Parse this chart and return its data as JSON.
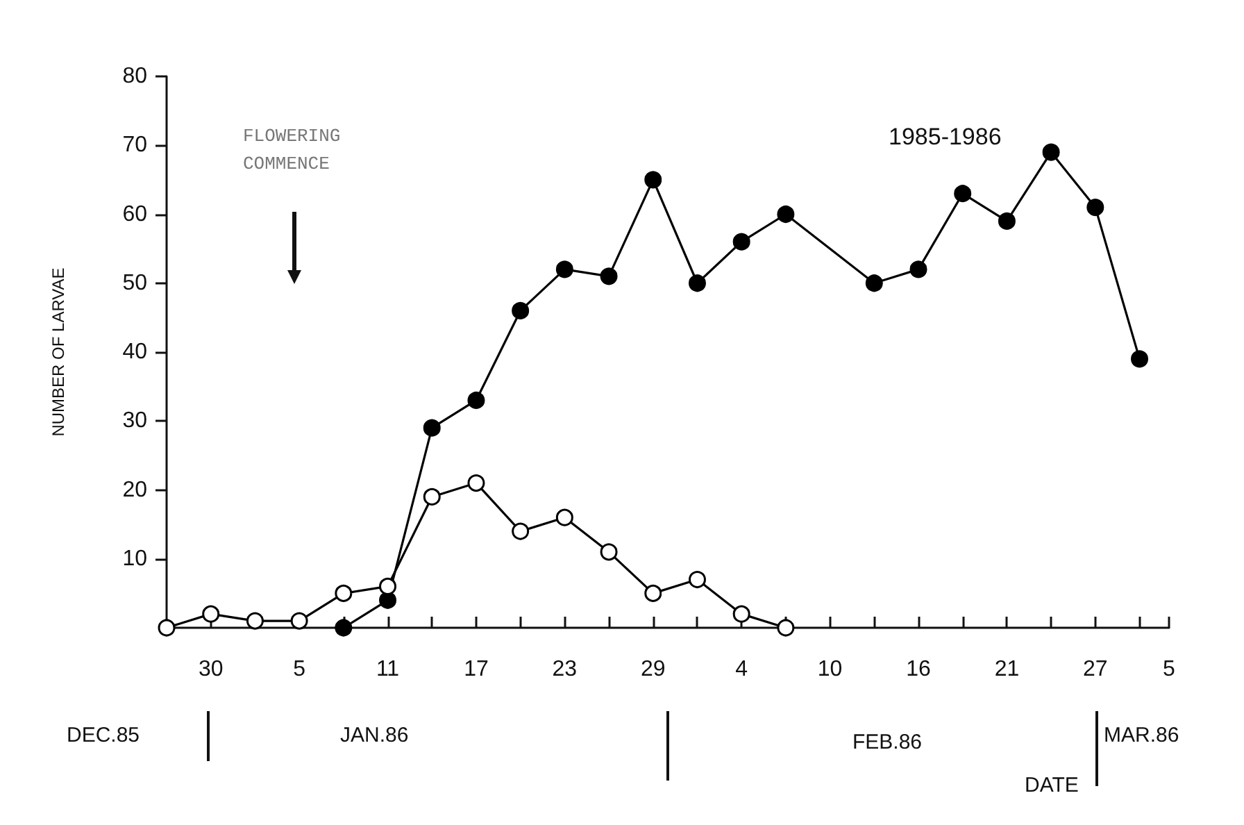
{
  "chart_data": {
    "type": "line",
    "ylabel": "NUMBER OF LARVAE",
    "annotations": [
      "FLOWERING COMMENCE",
      "1985-1986",
      "DEC.85",
      "JAN.86",
      "FEB.86",
      "MAR.86",
      "DATE"
    ],
    "series": [
      {
        "color": "#000000",
        "marker": "circle",
        "x": [
          "1986-01-08",
          "1986-01-11",
          "1986-01-14",
          "1986-01-17",
          "1986-01-20",
          "1986-01-23",
          "1986-01-26",
          "1986-01-29",
          "1986-02-01",
          "1986-02-04",
          "1986-02-07",
          "1986-02-13",
          "1986-02-16",
          "1986-02-19",
          "1986-02-22",
          "1986-02-25",
          "1986-02-28",
          "1986-03-03"
        ],
        "values": [
          0,
          4,
          29,
          33,
          46,
          52,
          51,
          65,
          50,
          56,
          60,
          50,
          52,
          63,
          59,
          69,
          61,
          39
        ]
      },
      {
        "color": "#ffffff",
        "marker": "circle",
        "x": [
          "1985-12-27",
          "1985-12-30",
          "1986-01-02",
          "1986-01-05",
          "1986-01-08",
          "1986-01-11",
          "1986-01-14",
          "1986-01-17",
          "1986-01-20",
          "1986-01-23",
          "1986-01-26",
          "1986-01-29",
          "1986-02-01",
          "1986-02-04",
          "1986-02-07"
        ],
        "values": [
          0,
          2,
          1,
          1,
          5,
          6,
          19,
          21,
          14,
          16,
          11,
          5,
          7,
          2,
          0
        ]
      }
    ],
    "xlim": [
      "1985-12-27",
      "1986-03-05"
    ],
    "xticks": [
      {
        "value": "1985-12-30",
        "label": "30"
      },
      {
        "value": "1986-01-02",
        "label": null
      },
      {
        "value": "1986-01-05",
        "label": "5"
      },
      {
        "value": "1986-01-08",
        "label": null
      },
      {
        "value": "1986-01-11",
        "label": "11"
      },
      {
        "value": "1986-01-14",
        "label": null
      },
      {
        "value": "1986-01-17",
        "label": "17"
      },
      {
        "value": "1986-01-20",
        "label": null
      },
      {
        "value": "1986-01-23",
        "label": "23"
      },
      {
        "value": "1986-01-26",
        "label": null
      },
      {
        "value": "1986-01-29",
        "label": "29"
      },
      {
        "value": "1986-02-01",
        "label": null
      },
      {
        "value": "1986-02-04",
        "label": "4"
      },
      {
        "value": "1986-02-07",
        "label": null
      },
      {
        "value": "1986-02-10",
        "label": "10"
      },
      {
        "value": "1986-02-13",
        "label": null
      },
      {
        "value": "1986-02-16",
        "label": "16"
      },
      {
        "value": "1986-02-19",
        "label": null
      },
      {
        "value": "1986-02-22",
        "label": "21"
      },
      {
        "value": "1986-02-25",
        "label": null
      },
      {
        "value": "1986-02-28",
        "label": "27"
      },
      {
        "value": "1986-03-03",
        "label": null
      },
      {
        "value": "1986-03-05",
        "label": "5"
      }
    ],
    "ylim": [
      0,
      80
    ],
    "yticks": [
      10,
      20,
      30,
      40,
      50,
      60,
      70,
      80
    ],
    "line_style": "solid"
  }
}
